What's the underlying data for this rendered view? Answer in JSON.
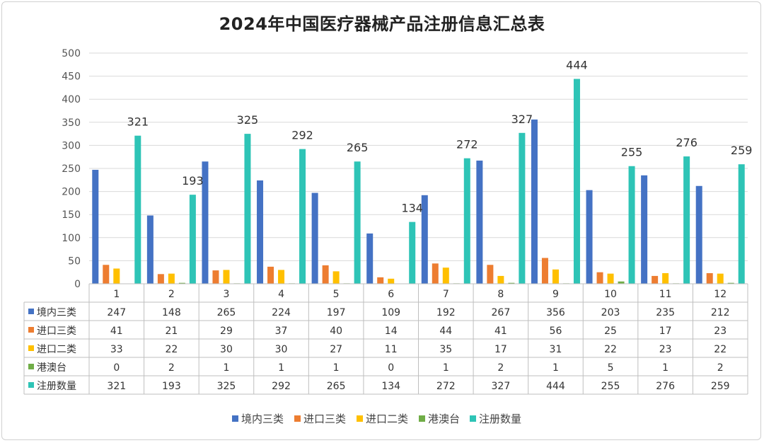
{
  "chart_data": {
    "type": "bar",
    "title": "2024年中国医疗器械产品注册信息汇总表",
    "categories": [
      "1",
      "2",
      "3",
      "4",
      "5",
      "6",
      "7",
      "8",
      "9",
      "10",
      "11",
      "12"
    ],
    "ylim": [
      0,
      500
    ],
    "yticks": [
      0,
      50,
      100,
      150,
      200,
      250,
      300,
      350,
      400,
      450,
      500
    ],
    "grid": true,
    "legend_position": "bottom",
    "data_labels_series": "注册数量",
    "series": [
      {
        "name": "境内三类",
        "color": "#4472C4",
        "values": [
          247,
          148,
          265,
          224,
          197,
          109,
          192,
          267,
          356,
          203,
          235,
          212
        ]
      },
      {
        "name": "进口三类",
        "color": "#ED7D31",
        "values": [
          41,
          21,
          29,
          37,
          40,
          14,
          44,
          41,
          56,
          25,
          17,
          23
        ]
      },
      {
        "name": "进口二类",
        "color": "#FFC000",
        "values": [
          33,
          22,
          30,
          30,
          27,
          11,
          35,
          17,
          31,
          22,
          23,
          22
        ]
      },
      {
        "name": "港澳台",
        "color": "#70AD47",
        "values": [
          0,
          2,
          1,
          1,
          1,
          0,
          1,
          2,
          1,
          5,
          1,
          2
        ]
      },
      {
        "name": "注册数量",
        "color": "#2EC4B6",
        "values": [
          321,
          193,
          325,
          292,
          265,
          134,
          272,
          327,
          444,
          255,
          276,
          259
        ]
      }
    ]
  }
}
